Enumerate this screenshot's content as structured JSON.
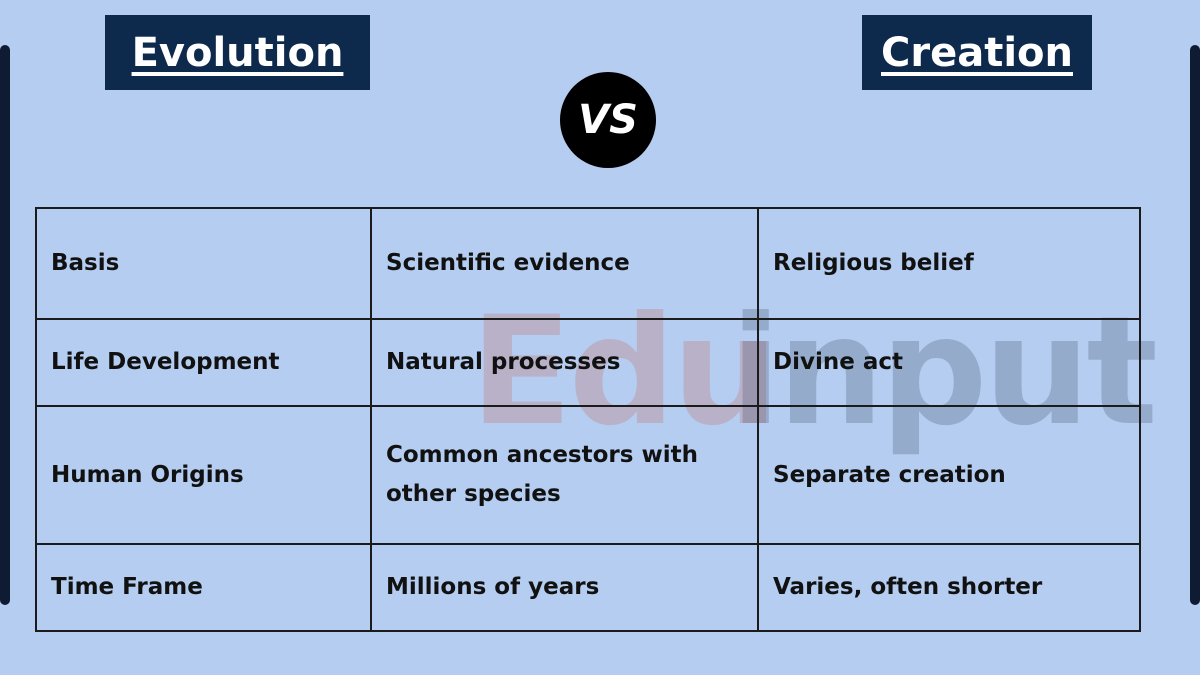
{
  "header": {
    "left_title": "Evolution",
    "vs": "VS",
    "right_title": "Creation"
  },
  "watermark": {
    "brand_left": "Edu",
    "brand_right": "input"
  },
  "table": {
    "rows": [
      [
        "Basis",
        "Scientific evidence",
        "Religious belief"
      ],
      [
        "Life Development",
        "Natural processes",
        "Divine act"
      ],
      [
        "Human Origins",
        "Common ancestors with other species",
        "Separate creation"
      ],
      [
        "Time Frame",
        "Millions of years",
        "Varies, often shorter"
      ]
    ]
  }
}
